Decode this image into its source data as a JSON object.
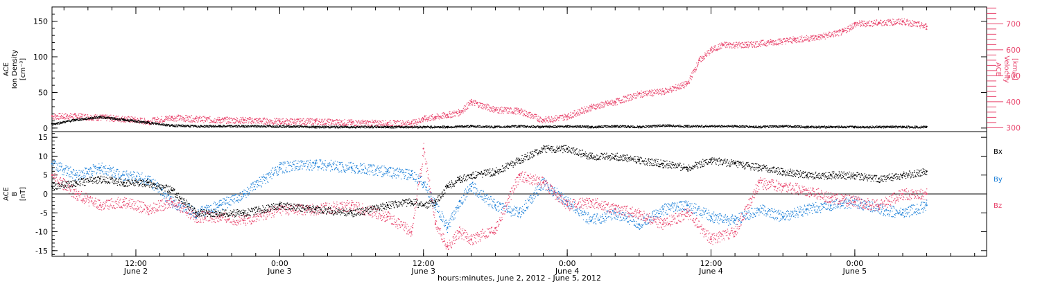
{
  "colors": {
    "black": "#000000",
    "velocity": "#e8436b",
    "bx": "#000000",
    "by": "#1a7fd8",
    "bz": "#e8436b"
  },
  "xaxis": {
    "title": "hours:minutes, June  2, 2012 - June  5, 2012",
    "ticks": [
      {
        "hour": 12,
        "time": "12:00",
        "date": "June 2"
      },
      {
        "hour": 24,
        "time": "0:00",
        "date": "June 3"
      },
      {
        "hour": 36,
        "time": "12:00",
        "date": "June 3"
      },
      {
        "hour": 48,
        "time": "0:00",
        "date": "June 4"
      },
      {
        "hour": 60,
        "time": "12:00",
        "date": "June 4"
      },
      {
        "hour": 72,
        "time": "0:00",
        "date": "June 5"
      }
    ]
  },
  "chart_data": [
    {
      "type": "scatter",
      "title": "",
      "xlabel": "hours:minutes, June  2, 2012 - June  5, 2012",
      "ylabel_left": [
        "ACE",
        "Ion Density",
        "[cm⁻³]"
      ],
      "ylabel_right": [
        "ACE",
        "Velocity",
        "[km/s]"
      ],
      "xlim": [
        5,
        83
      ],
      "ylim_left": [
        -5,
        170
      ],
      "ylim_right": [
        285,
        765
      ],
      "yticks_left": [
        "0",
        "50",
        "100",
        "150"
      ],
      "yticks_right": [
        "300",
        "400",
        "500",
        "600",
        "700"
      ],
      "series": [
        {
          "name": "Ion Density",
          "axis": "left",
          "x": [
            5,
            7,
            9,
            11,
            13,
            15,
            17,
            19,
            21,
            24,
            27,
            30,
            33,
            36,
            38,
            40,
            42,
            44,
            46,
            48,
            50,
            52,
            54,
            56,
            58,
            60,
            62,
            64,
            66,
            68,
            70,
            72,
            74,
            76,
            78
          ],
          "y": [
            6,
            12,
            16,
            12,
            8,
            4,
            3,
            3,
            3,
            3,
            2,
            2,
            2,
            2,
            2,
            3,
            2,
            3,
            2,
            3,
            2,
            3,
            2,
            4,
            3,
            3,
            3,
            2,
            3,
            2,
            2,
            2,
            2,
            2,
            2
          ]
        },
        {
          "name": "Velocity",
          "axis": "right",
          "x": [
            5,
            7,
            9,
            11,
            13,
            15,
            17,
            19,
            21,
            24,
            27,
            30,
            33,
            35,
            36,
            37,
            38,
            39,
            40,
            42,
            44,
            46,
            48,
            50,
            52,
            54,
            56,
            58,
            59,
            60,
            61,
            63,
            65,
            67,
            69,
            71,
            72,
            74,
            76,
            78
          ],
          "y": [
            345,
            345,
            340,
            335,
            325,
            340,
            335,
            330,
            330,
            325,
            325,
            320,
            318,
            318,
            335,
            342,
            350,
            360,
            400,
            370,
            365,
            330,
            345,
            380,
            400,
            430,
            440,
            470,
            560,
            600,
            620,
            620,
            630,
            640,
            650,
            670,
            700,
            705,
            710,
            690
          ]
        }
      ]
    },
    {
      "type": "scatter",
      "title": "",
      "xlabel": "hours:minutes, June  2, 2012 - June  5, 2012",
      "ylabel_left": [
        "ACE",
        "B",
        "[nT]"
      ],
      "xlim": [
        5,
        83
      ],
      "ylim": [
        -16.5,
        16.5
      ],
      "yticks": [
        "-15",
        "-10",
        "-5",
        "0",
        "5",
        "10",
        "15"
      ],
      "reference_line": 0,
      "series": [
        {
          "name": "Bx",
          "x": [
            5,
            7,
            9,
            11,
            13,
            15,
            17,
            19,
            21,
            24,
            27,
            30,
            33,
            35,
            36,
            37,
            38,
            39,
            40,
            42,
            44,
            46,
            48,
            50,
            52,
            54,
            56,
            58,
            60,
            62,
            64,
            66,
            68,
            70,
            72,
            74,
            76,
            78
          ],
          "y": [
            2,
            3,
            4,
            3,
            3,
            1,
            -5,
            -5,
            -5,
            -3,
            -4,
            -5,
            -3,
            -2,
            -3,
            -2,
            2,
            4,
            5,
            6,
            9,
            12,
            12,
            10,
            10,
            9,
            8,
            7,
            9,
            8,
            7,
            6,
            5,
            5,
            5,
            4,
            5,
            6
          ]
        },
        {
          "name": "By",
          "x": [
            5,
            7,
            9,
            11,
            13,
            15,
            17,
            19,
            21,
            24,
            27,
            30,
            33,
            35,
            36,
            37,
            38,
            39,
            40,
            42,
            44,
            46,
            48,
            50,
            52,
            54,
            56,
            58,
            60,
            62,
            64,
            66,
            68,
            70,
            72,
            74,
            76,
            78
          ],
          "y": [
            8,
            5,
            7,
            5,
            4,
            -2,
            -5,
            -3,
            0,
            7,
            8,
            7,
            6,
            5,
            3,
            -3,
            -9,
            -2,
            2,
            -3,
            -5,
            3,
            -2,
            -7,
            -5,
            -8,
            -4,
            -3,
            -6,
            -7,
            -4,
            -6,
            -4,
            -3,
            -2,
            -4,
            -5,
            -3
          ]
        },
        {
          "name": "Bz",
          "x": [
            5,
            7,
            9,
            11,
            13,
            15,
            17,
            19,
            21,
            24,
            27,
            30,
            33,
            35,
            36,
            37,
            38,
            39,
            40,
            42,
            44,
            46,
            48,
            50,
            52,
            54,
            56,
            58,
            60,
            62,
            64,
            66,
            68,
            70,
            72,
            74,
            76,
            78
          ],
          "y": [
            5,
            0,
            -3,
            -2,
            -4,
            -2,
            -6,
            -6,
            -7,
            -4,
            -4,
            -3,
            -6,
            -10,
            12,
            -8,
            -14,
            -10,
            -12,
            -9,
            5,
            3,
            -3,
            -2,
            -4,
            -5,
            -8,
            -5,
            -12,
            -10,
            3,
            2,
            1,
            -1,
            -2,
            -3,
            0,
            0
          ]
        }
      ],
      "legend": [
        "Bx",
        "By",
        "Bz"
      ],
      "legend_position": "right"
    }
  ]
}
